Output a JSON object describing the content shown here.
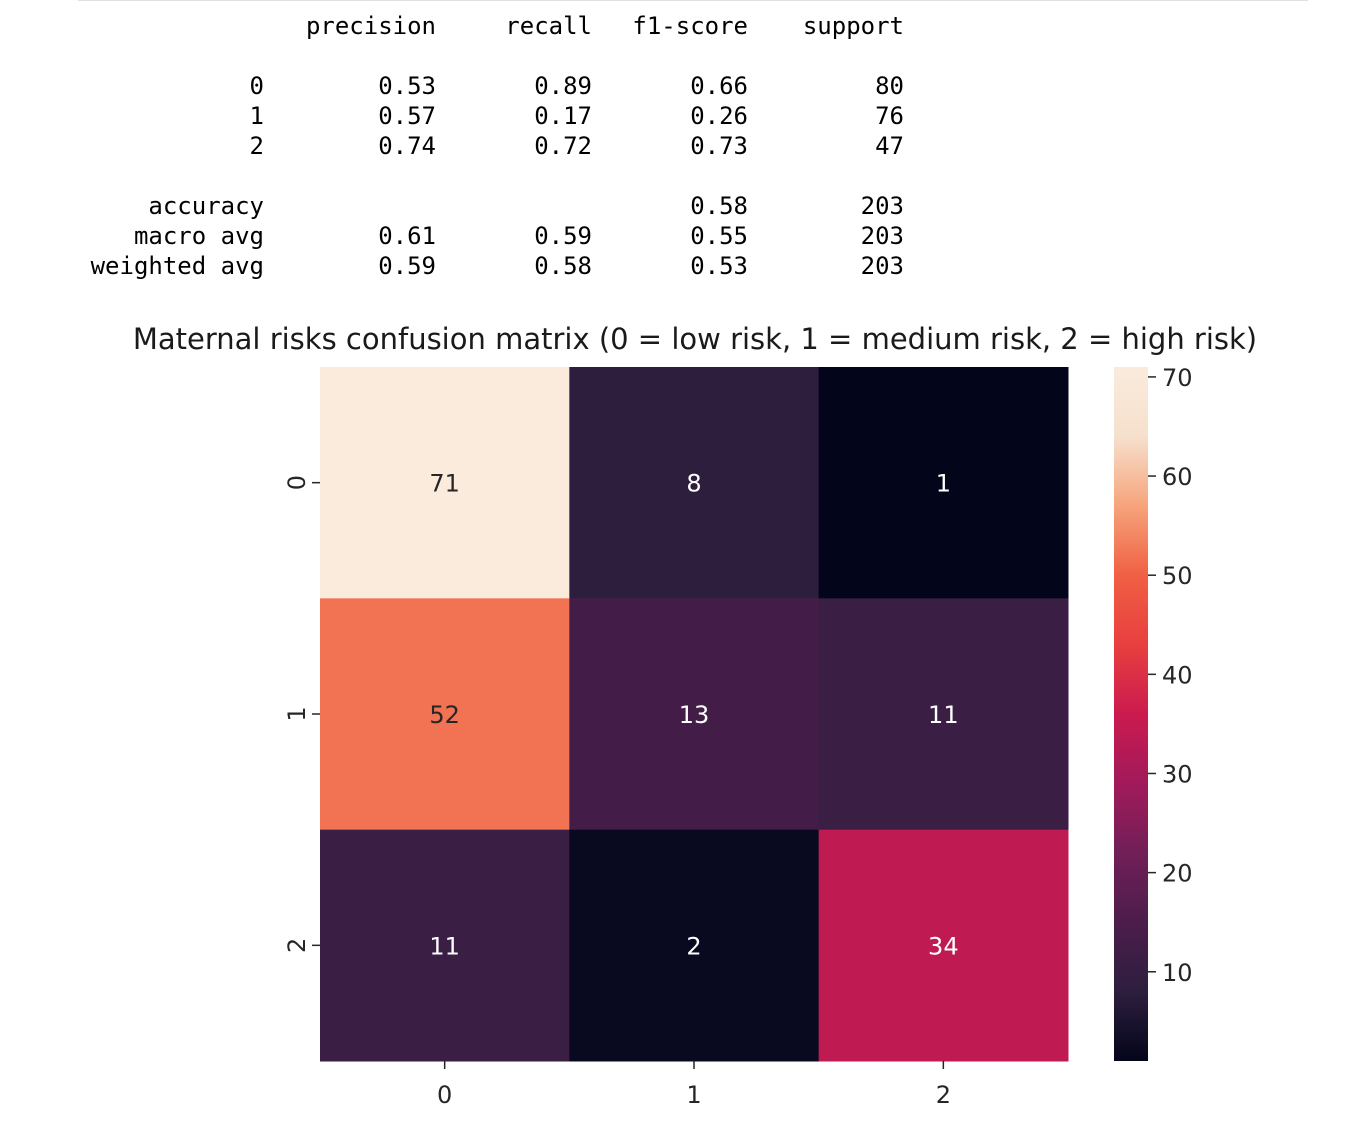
{
  "report": {
    "headers": [
      "precision",
      "recall",
      "f1-score",
      "support"
    ],
    "class_rows": [
      {
        "label": "0",
        "precision": "0.53",
        "recall": "0.89",
        "f1": "0.66",
        "support": "80"
      },
      {
        "label": "1",
        "precision": "0.57",
        "recall": "0.17",
        "f1": "0.26",
        "support": "76"
      },
      {
        "label": "2",
        "precision": "0.74",
        "recall": "0.72",
        "f1": "0.73",
        "support": "47"
      }
    ],
    "summary_rows": [
      {
        "label": "accuracy",
        "precision": "",
        "recall": "",
        "f1": "0.58",
        "support": "203"
      },
      {
        "label": "macro avg",
        "precision": "0.61",
        "recall": "0.59",
        "f1": "0.55",
        "support": "203"
      },
      {
        "label": "weighted avg",
        "precision": "0.59",
        "recall": "0.58",
        "f1": "0.53",
        "support": "203"
      }
    ]
  },
  "chart_data": {
    "type": "heatmap",
    "title": "Maternal risks confusion matrix (0 = low risk, 1 = medium risk, 2 = high risk)",
    "x_categories": [
      "0",
      "1",
      "2"
    ],
    "y_categories": [
      "0",
      "1",
      "2"
    ],
    "values": [
      [
        71,
        8,
        1
      ],
      [
        52,
        13,
        11
      ],
      [
        11,
        2,
        34
      ]
    ],
    "colorbar": {
      "min": 1,
      "max": 71,
      "ticks": [
        10,
        20,
        30,
        40,
        50,
        60,
        70
      ]
    },
    "colormap": "rocket",
    "colormap_stops": [
      "#03051a",
      "#2d1e3e",
      "#4c1d4b",
      "#711f57",
      "#a11a5b",
      "#cb1b4f",
      "#e83f3f",
      "#f06043",
      "#f6a47c",
      "#f6e0cd",
      "#faebdd"
    ]
  }
}
